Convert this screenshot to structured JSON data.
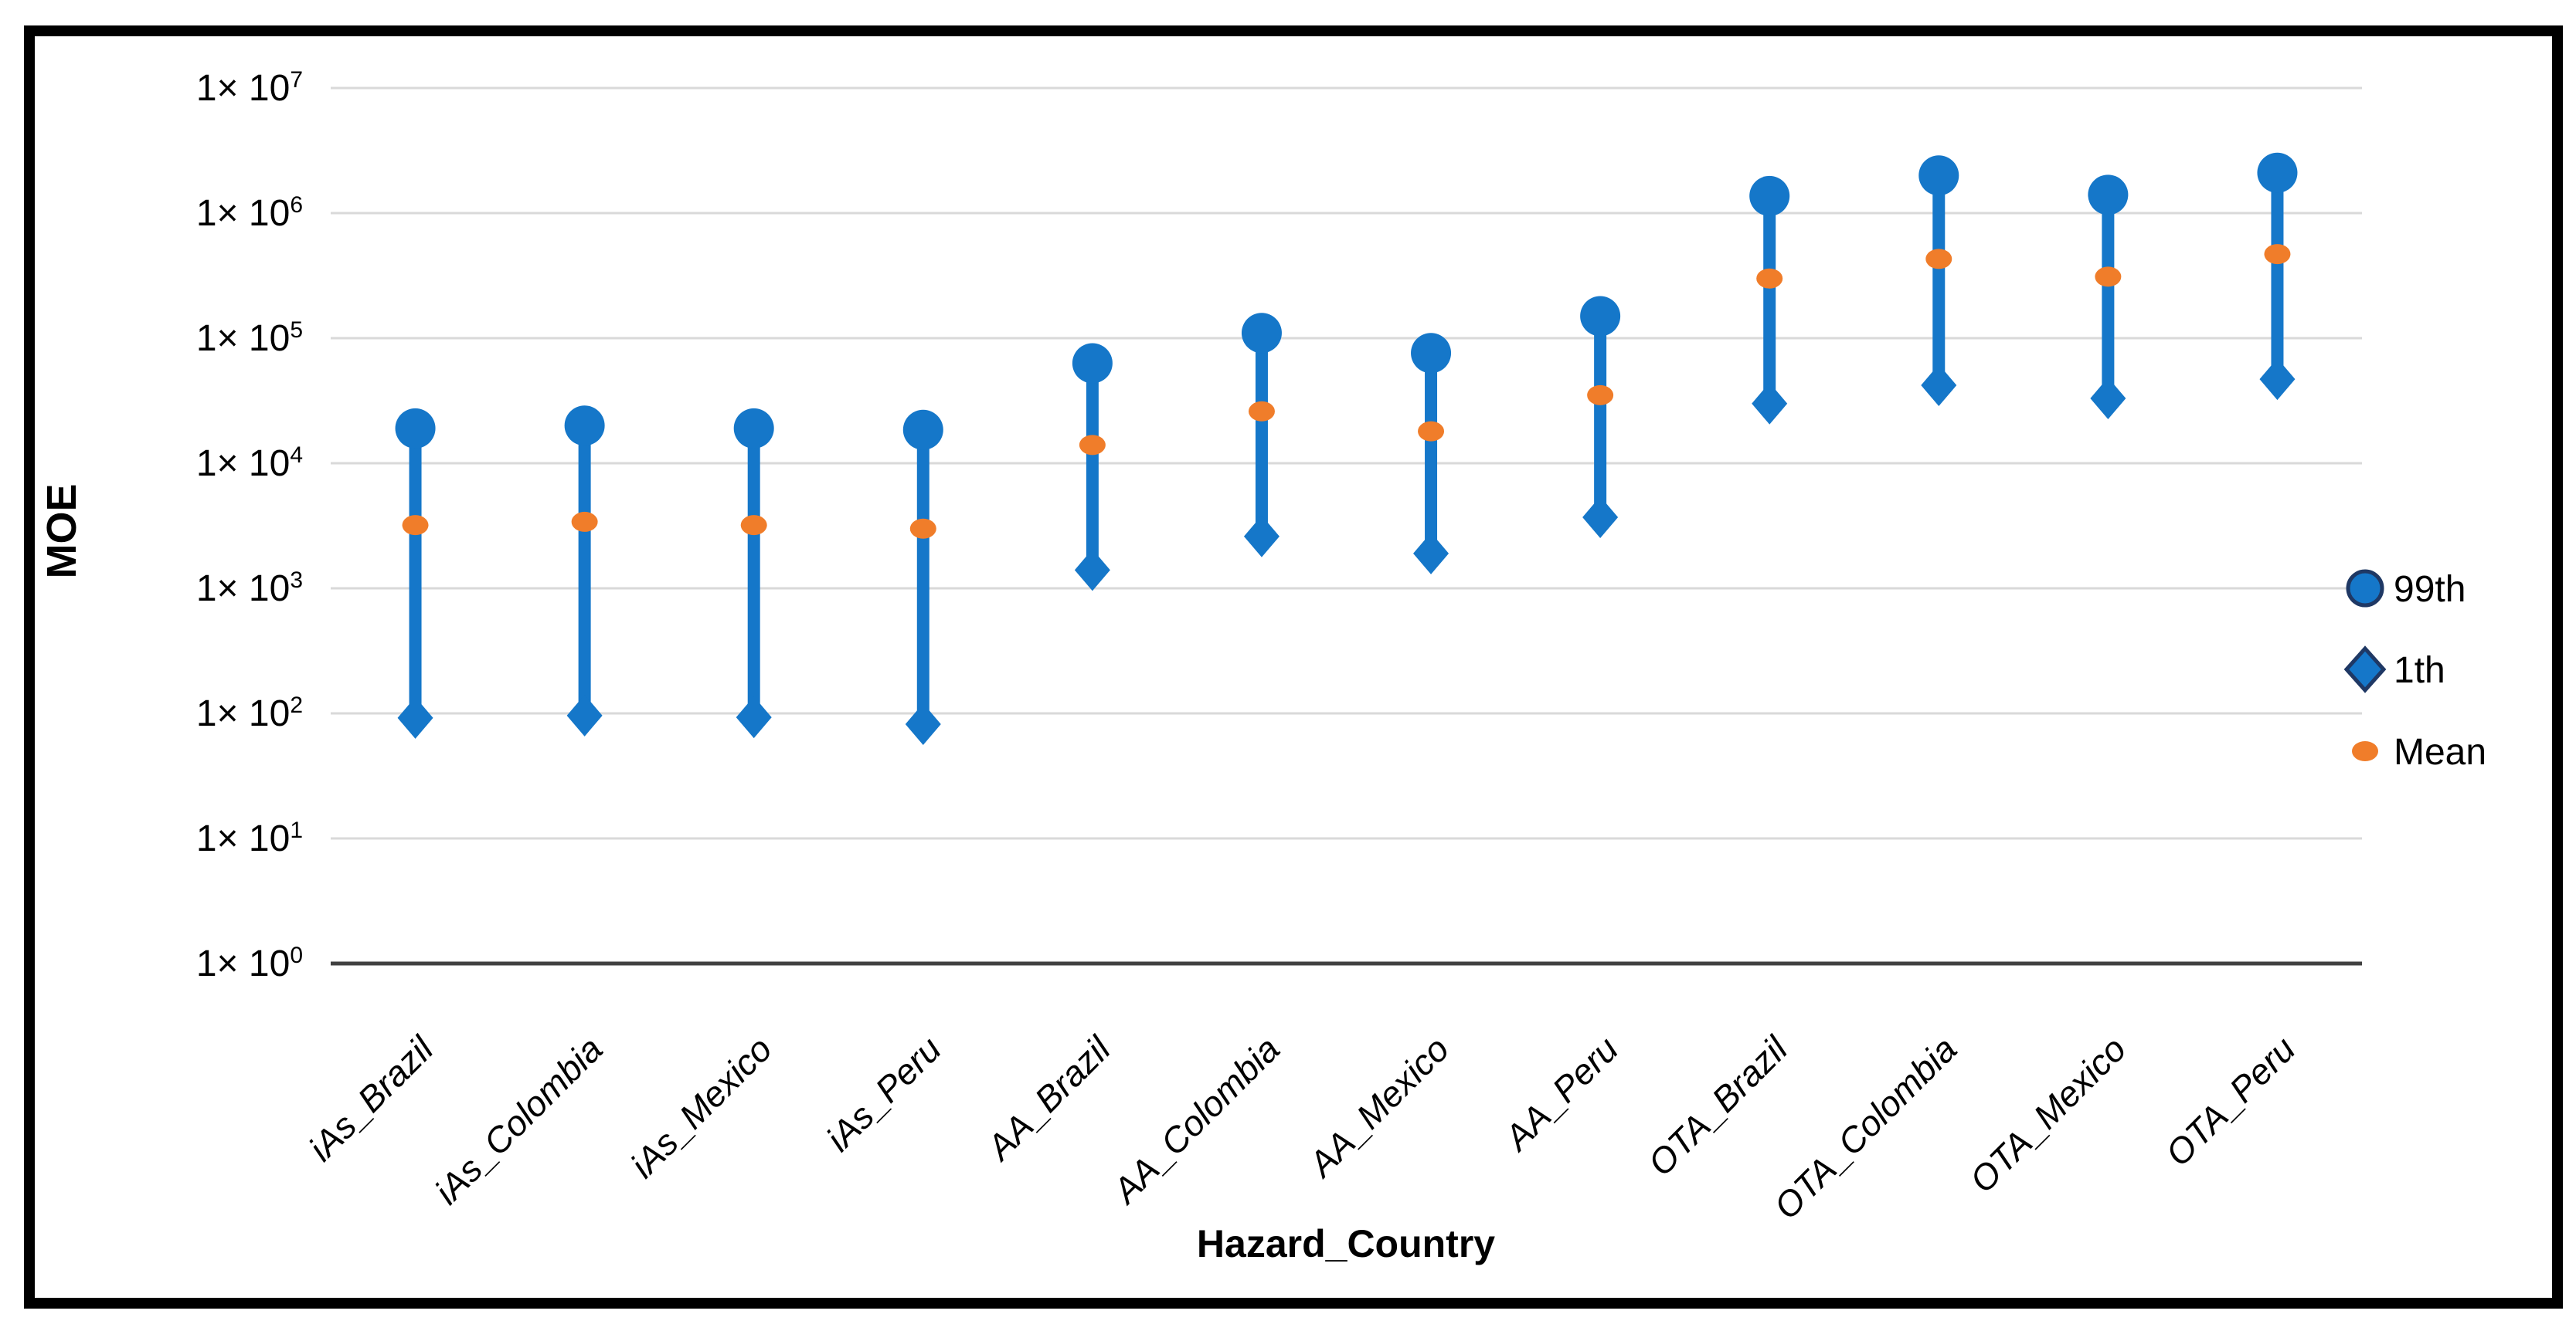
{
  "figure": {
    "background": "#FFFFFF",
    "border_color": "#000000"
  },
  "chart_data": {
    "type": "scatter",
    "subtype": "dumbbell-range",
    "title": "",
    "xlabel": "Hazard_Country",
    "ylabel": "MOE",
    "y_scale": "log",
    "ylim": [
      1,
      10000000
    ],
    "grid": true,
    "legend_position": "right",
    "y_tick_prefix": "1× 10",
    "y_tick_exponents": [
      7,
      6,
      5,
      4,
      3,
      2,
      1,
      0
    ],
    "categories": [
      "iAs_Brazil",
      "iAs_Colombia",
      "iAs_Mexico",
      "iAs_Peru",
      "AA_Brazil",
      "AA_Colombia",
      "AA_Mexico",
      "AA_Peru",
      "OTA_Brazil",
      "OTA_Colombia",
      "OTA_Mexico",
      "OTA_Peru"
    ],
    "series": [
      {
        "name": "99th",
        "marker": "circle",
        "color": "#1577C9",
        "outline": "#1F3864",
        "values": [
          19000,
          20000,
          19000,
          18500,
          63000,
          110000,
          76000,
          150000,
          1370000,
          2000000,
          1400000,
          2100000
        ]
      },
      {
        "name": "1th",
        "marker": "diamond",
        "color": "#1577C9",
        "outline": "#1F3864",
        "values": [
          92,
          96,
          93,
          82,
          1400,
          2600,
          1900,
          3700,
          30000,
          42000,
          33000,
          47000
        ]
      },
      {
        "name": "Mean",
        "marker": "dot",
        "color": "#F07D2A",
        "outline": "#F07D2A",
        "values": [
          3200,
          3400,
          3200,
          3000,
          14000,
          26000,
          18000,
          35000,
          300000,
          430000,
          310000,
          470000
        ]
      }
    ],
    "bar_color": "#1577C9",
    "gridline_color": "#D9D9D9",
    "axis_line_color": "#404040"
  },
  "legend": {
    "items": [
      {
        "label": "99th",
        "marker": "circle",
        "fill": "#1577C9",
        "outline": "#1F3864"
      },
      {
        "label": "1th",
        "marker": "diamond",
        "fill": "#1577C9",
        "outline": "#1F3864"
      },
      {
        "label": "Mean",
        "marker": "dot",
        "fill": "#F07D2A",
        "outline": "#F07D2A"
      }
    ]
  }
}
